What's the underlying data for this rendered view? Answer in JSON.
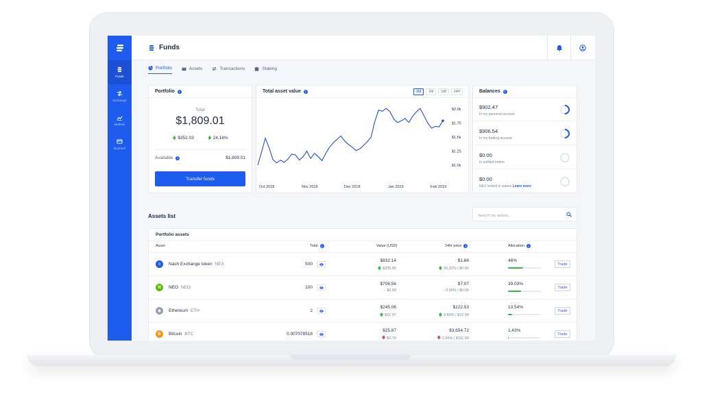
{
  "sidebar": {
    "items": [
      {
        "label": "Funds",
        "icon": "funds-icon",
        "active": true
      },
      {
        "label": "Exchange",
        "icon": "exchange-icon"
      },
      {
        "label": "Markets",
        "icon": "markets-icon"
      },
      {
        "label": "Buy/Sell",
        "icon": "card-icon"
      }
    ]
  },
  "header": {
    "title": "Funds"
  },
  "tabs": [
    {
      "label": "Portfolio",
      "active": true
    },
    {
      "label": "Assets"
    },
    {
      "label": "Transactions"
    },
    {
      "label": "Staking"
    }
  ],
  "portfolio": {
    "title": "Portfolio",
    "total_label": "Total",
    "total": "$1,809.01",
    "change_usd": "$352.03",
    "change_pct": "24.16%",
    "available_label": "Available",
    "available": "$1,809.01",
    "transfer_button": "Transfer funds"
  },
  "asset_value": {
    "title": "Total asset value",
    "ranges": [
      "6M",
      "1M",
      "1W",
      "24H"
    ],
    "selected_range": "6M"
  },
  "chart_data": {
    "type": "line",
    "title": "Total asset value",
    "x_ticks": [
      "Oct 2018",
      "Nov 2018",
      "Dec 2018",
      "Jan 2019",
      "Feb 2019"
    ],
    "y_ticks": [
      "$2.0k",
      "$1.75",
      "$1.5k",
      "$1.25",
      "$1.0k"
    ],
    "ylim": [
      1000,
      2000
    ],
    "series": [
      {
        "values": [
          1000,
          1230,
          1480,
          1310,
          1100,
          1040,
          1090,
          1050,
          1110,
          1200,
          1180,
          1090,
          1150,
          1250,
          1120,
          1210,
          1150,
          1080,
          1210,
          1320,
          1400,
          1460,
          1520,
          1430,
          1370,
          1320,
          1260,
          1290,
          1350,
          1420,
          1500,
          1780,
          1980,
          1960,
          2010,
          1950,
          1820,
          1760,
          1790,
          1830,
          1760,
          1870,
          1950,
          2010,
          1880,
          1750,
          1660,
          1690,
          1680,
          1790
        ]
      }
    ]
  },
  "balances": {
    "title": "Balances",
    "items": [
      {
        "value": "$902.47",
        "label": "In my personal account",
        "pct": 0.5
      },
      {
        "value": "$906.54",
        "label": "In my trading account",
        "pct": 0.5
      },
      {
        "value": "$0.00",
        "label": "In unfilled orders",
        "pct": 0
      },
      {
        "value": "$0.00",
        "label": "NEX locked in stakes",
        "link": "Learn more",
        "pct": 0
      }
    ]
  },
  "assets": {
    "title": "Assets list",
    "search_placeholder": "Search my assets...",
    "table_title": "Portfolio assets",
    "columns": [
      "Asset",
      "Total",
      "Value (USD)",
      "24hr price",
      "Allocation"
    ],
    "trade_label": "Trade",
    "rows": [
      {
        "name": "Nash Exchange token",
        "symbol": "NEX",
        "total": "500",
        "value": "$832.14",
        "value_change": "$330.85",
        "value_dir": "up",
        "price": "$1.66",
        "price_change": "65.32% | $0.66",
        "price_dir": "up",
        "allocation": "46%",
        "alloc_pct": 0.46,
        "color": "#1e5cf0",
        "glyph": "≡"
      },
      {
        "name": "NEO",
        "symbol": "NEO",
        "total": "100",
        "value": "$706.56",
        "value_change": "$0.00",
        "value_dir": "flat",
        "price": "$7.07",
        "price_change": "0.00% | $0.00",
        "price_dir": "flat",
        "allocation": "39.03%",
        "alloc_pct": 0.3903,
        "color": "#58bf00",
        "glyph": "N"
      },
      {
        "name": "Ethereum",
        "symbol": "ETH",
        "total": "2",
        "value": "$245.06",
        "value_change": "$21.97",
        "value_dir": "up",
        "price": "$122.53",
        "price_change": "9.85% | $10.99",
        "price_dir": "up",
        "allocation": "13.54%",
        "alloc_pct": 0.1354,
        "color": "#9aa1b1",
        "glyph": "◆"
      },
      {
        "name": "Bitcoin",
        "symbol": "BTC",
        "total": "0.007078518",
        "value": "$25.87",
        "value_change": "$0.79",
        "value_dir": "down",
        "price": "$3,654.72",
        "price_change": "2.95% | $111.09",
        "price_dir": "down",
        "allocation": "1.43%",
        "alloc_pct": 0.0143,
        "color": "#f7931a",
        "glyph": "B"
      }
    ]
  },
  "colors": {
    "accent": "#1e5cf0",
    "up": "#3bb34b",
    "down": "#e34b53"
  }
}
